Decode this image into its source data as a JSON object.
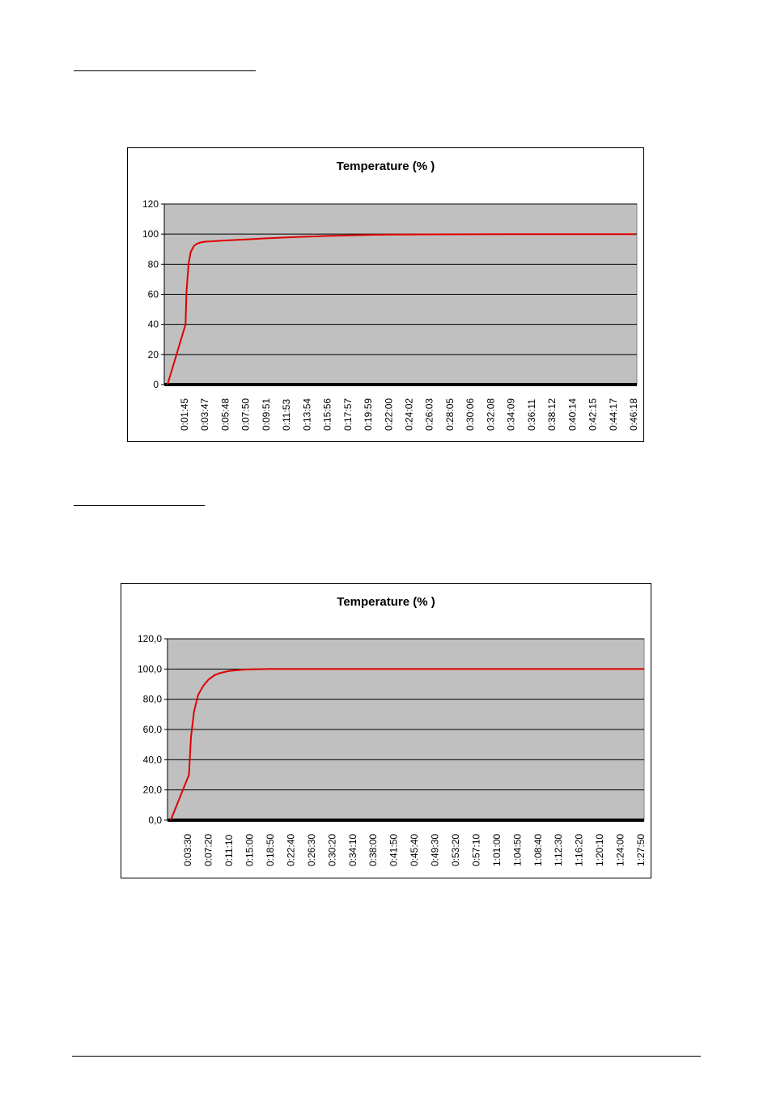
{
  "chart_data": [
    {
      "type": "line",
      "title": "Temperature (% )",
      "ylim": [
        0,
        120
      ],
      "yticks": [
        "0",
        "20",
        "40",
        "60",
        "80",
        "100",
        "120"
      ],
      "categories": [
        "0:01:45",
        "0:03:47",
        "0:05:48",
        "0:07:50",
        "0:09:51",
        "0:11:53",
        "0:13:54",
        "0:15:56",
        "0:17:57",
        "0:19:59",
        "0:22:00",
        "0:24:02",
        "0:26:03",
        "0:28:05",
        "0:30:06",
        "0:32:08",
        "0:34:09",
        "0:36:11",
        "0:38:12",
        "0:40:14",
        "0:42:15",
        "0:44:17",
        "0:46:18"
      ],
      "grid": true,
      "legend": "none",
      "series": [
        {
          "color": "#e00000",
          "points": [
            [
              0,
              0
            ],
            [
              0.05,
              40
            ],
            [
              0.1,
              62
            ],
            [
              0.2,
              80
            ],
            [
              0.3,
              88
            ],
            [
              0.45,
              92
            ],
            [
              0.6,
              93.5
            ],
            [
              0.8,
              94.5
            ],
            [
              1.0,
              95
            ],
            [
              2,
              95.8
            ],
            [
              3,
              96.5
            ],
            [
              4,
              97.2
            ],
            [
              5,
              97.8
            ],
            [
              6,
              98.3
            ],
            [
              7,
              98.8
            ],
            [
              8,
              99.2
            ],
            [
              9,
              99.5
            ],
            [
              10,
              99.7
            ],
            [
              12,
              99.8
            ],
            [
              14,
              99.9
            ],
            [
              16,
              100
            ],
            [
              22,
              100
            ]
          ]
        }
      ]
    },
    {
      "type": "line",
      "title": "Temperature (% )",
      "ylim": [
        0,
        120
      ],
      "yticks": [
        "0,0",
        "20,0",
        "40,0",
        "60,0",
        "80,0",
        "100,0",
        "120,0"
      ],
      "categories": [
        "0:03:30",
        "0:07:20",
        "0:11:10",
        "0:15:00",
        "0:18:50",
        "0:22:40",
        "0:26:30",
        "0:30:20",
        "0:34:10",
        "0:38:00",
        "0:41:50",
        "0:45:40",
        "0:49:30",
        "0:53:20",
        "0:57:10",
        "1:01:00",
        "1:04:50",
        "1:08:40",
        "1:12:30",
        "1:16:20",
        "1:20:10",
        "1:24:00",
        "1:27:50"
      ],
      "grid": true,
      "legend": "none",
      "series": [
        {
          "color": "#e00000",
          "points": [
            [
              0,
              0
            ],
            [
              0.05,
              30
            ],
            [
              0.15,
              55
            ],
            [
              0.3,
              72
            ],
            [
              0.5,
              83
            ],
            [
              0.75,
              89
            ],
            [
              1.0,
              93
            ],
            [
              1.3,
              96
            ],
            [
              1.6,
              97.5
            ],
            [
              2,
              98.7
            ],
            [
              2.5,
              99.4
            ],
            [
              3,
              99.8
            ],
            [
              4,
              100
            ],
            [
              22,
              100
            ]
          ]
        }
      ]
    }
  ]
}
